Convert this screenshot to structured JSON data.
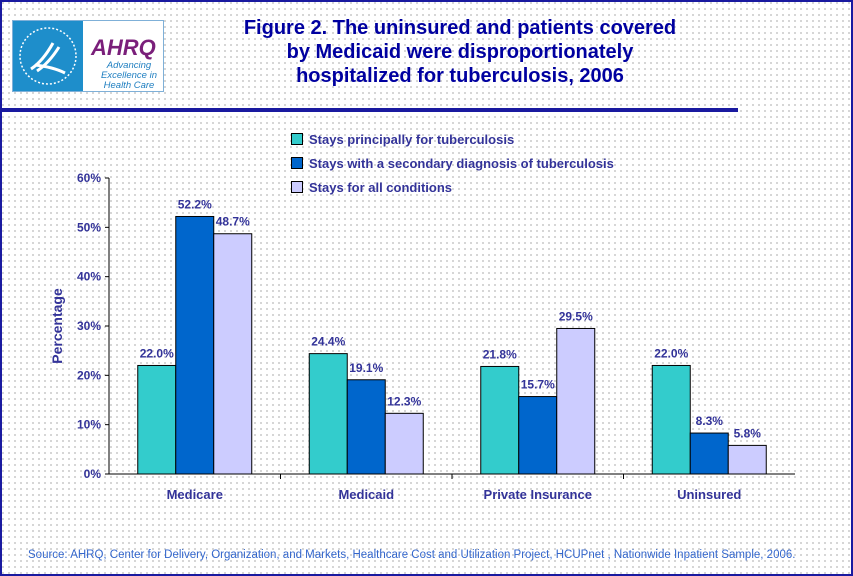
{
  "header": {
    "logo_text": "AHRQ Advancing Excellence in Health Care",
    "title_lines": [
      "Figure 2. The uninsured and patients covered",
      "by Medicaid were disproportionately",
      "hospitalized for tuberculosis, 2006"
    ]
  },
  "source": "Source: AHRQ, Center for Delivery, Organization, and Markets, Healthcare Cost and Utilization Project, HCUPnet , Nationwide Inpatient Sample, 2006.",
  "chart_data": {
    "type": "bar",
    "title": "Figure 2. The uninsured and patients covered by Medicaid were disproportionately hospitalized for tuberculosis, 2006",
    "xlabel": "",
    "ylabel": "Percentage",
    "ylim": [
      0,
      60
    ],
    "yticks": [
      "0%",
      "10%",
      "20%",
      "30%",
      "40%",
      "50%",
      "60%"
    ],
    "grid": false,
    "legend_position": "top",
    "categories": [
      "Medicare",
      "Medicaid",
      "Private Insurance",
      "Uninsured"
    ],
    "series": [
      {
        "name": "Stays principally for tuberculosis",
        "color": "#33CCCC",
        "values": [
          22.0,
          24.4,
          21.8,
          22.0
        ],
        "labels": [
          "22.0%",
          "24.4%",
          "21.8%",
          "22.0%"
        ]
      },
      {
        "name": "Stays with a secondary diagnosis of tuberculosis",
        "color": "#0066CC",
        "values": [
          52.2,
          19.1,
          15.7,
          8.3
        ],
        "labels": [
          "52.2%",
          "19.1%",
          "15.7%",
          "8.3%"
        ]
      },
      {
        "name": "Stays for all conditions",
        "color": "#CCCCFF",
        "values": [
          48.7,
          12.3,
          29.5,
          5.8
        ],
        "labels": [
          "48.7%",
          "12.3%",
          "29.5%",
          "5.8%"
        ]
      }
    ]
  }
}
